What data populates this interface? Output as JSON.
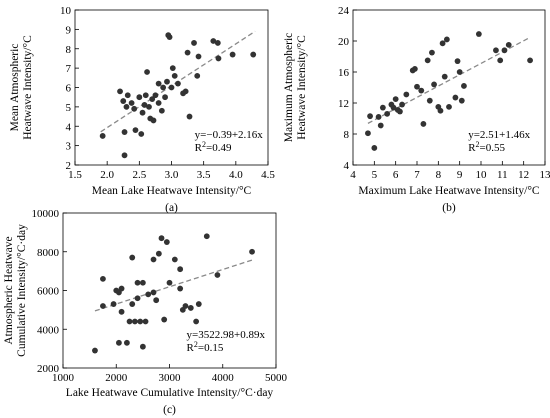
{
  "chart_data": [
    {
      "type": "scatter",
      "panel_label": "(a)",
      "xlabel": "Mean Lake Heatwave Intensity/°C",
      "ylabel": [
        "Mean Atmospheric",
        "Heatwave Intensity/°C"
      ],
      "xlim": [
        1.5,
        4.5
      ],
      "ylim": [
        2,
        10
      ],
      "xticks": [
        "1.5",
        "2.0",
        "2.5",
        "3.0",
        "3.5",
        "4.0",
        "4.5"
      ],
      "yticks": [
        "2",
        "3",
        "4",
        "5",
        "6",
        "7",
        "8",
        "9",
        "10"
      ],
      "xtick_values": [
        1.5,
        2.0,
        2.5,
        3.0,
        3.5,
        4.0,
        4.5
      ],
      "ytick_values": [
        2,
        3,
        4,
        5,
        6,
        7,
        8,
        9,
        10
      ],
      "equation": "y=−0.39+2.16x",
      "r2_label": "R",
      "r2_value": "=0.49",
      "trend": {
        "intercept": -0.39,
        "slope": 2.16,
        "x_range": [
          1.9,
          4.3
        ]
      },
      "points": [
        [
          1.93,
          3.5
        ],
        [
          2.2,
          5.8
        ],
        [
          2.25,
          5.3
        ],
        [
          2.27,
          2.5
        ],
        [
          2.27,
          3.7
        ],
        [
          2.3,
          5.0
        ],
        [
          2.32,
          5.6
        ],
        [
          2.38,
          5.2
        ],
        [
          2.42,
          4.9
        ],
        [
          2.44,
          3.8
        ],
        [
          2.5,
          5.5
        ],
        [
          2.53,
          3.6
        ],
        [
          2.55,
          4.7
        ],
        [
          2.58,
          5.1
        ],
        [
          2.6,
          5.6
        ],
        [
          2.62,
          6.8
        ],
        [
          2.65,
          5.0
        ],
        [
          2.67,
          4.4
        ],
        [
          2.7,
          5.4
        ],
        [
          2.72,
          4.3
        ],
        [
          2.75,
          5.6
        ],
        [
          2.8,
          5.2
        ],
        [
          2.85,
          4.8
        ],
        [
          2.87,
          6.0
        ],
        [
          2.9,
          5.5
        ],
        [
          2.93,
          6.3
        ],
        [
          2.95,
          8.7
        ],
        [
          2.97,
          8.6
        ],
        [
          3.0,
          6.0
        ],
        [
          3.02,
          7.0
        ],
        [
          3.05,
          6.6
        ],
        [
          3.1,
          6.2
        ],
        [
          3.18,
          5.7
        ],
        [
          3.25,
          7.8
        ],
        [
          3.28,
          4.5
        ],
        [
          3.35,
          8.3
        ],
        [
          3.4,
          6.6
        ],
        [
          3.42,
          7.6
        ],
        [
          3.65,
          8.4
        ],
        [
          3.72,
          8.3
        ],
        [
          3.73,
          7.5
        ],
        [
          3.95,
          7.7
        ],
        [
          4.27,
          7.7
        ],
        [
          3.22,
          5.8
        ],
        [
          2.8,
          6.2
        ]
      ]
    },
    {
      "type": "scatter",
      "panel_label": "(b)",
      "xlabel": "Maximum Lake Heatwave Intensity/°C",
      "ylabel": [
        "Maximum Atmospheric",
        "Heatwave Intensity/°C"
      ],
      "xlim": [
        4,
        13
      ],
      "ylim": [
        4,
        24
      ],
      "xticks": [
        "4",
        "5",
        "6",
        "7",
        "8",
        "9",
        "10",
        "11",
        "12",
        "13"
      ],
      "yticks": [
        "4",
        "8",
        "12",
        "16",
        "20",
        "24"
      ],
      "xtick_values": [
        4,
        5,
        6,
        7,
        8,
        9,
        10,
        11,
        12,
        13
      ],
      "ytick_values": [
        4,
        8,
        12,
        16,
        20,
        24
      ],
      "equation": "y=2.51+1.46x",
      "r2_label": "R",
      "r2_value": "=0.55",
      "trend": {
        "intercept": 2.51,
        "slope": 1.46,
        "x_range": [
          4.7,
          12.3
        ]
      },
      "points": [
        [
          4.7,
          8.1
        ],
        [
          4.8,
          10.3
        ],
        [
          5.0,
          6.2
        ],
        [
          5.2,
          10.2
        ],
        [
          5.3,
          9.1
        ],
        [
          5.4,
          11.4
        ],
        [
          5.6,
          10.6
        ],
        [
          5.8,
          11.8
        ],
        [
          6.0,
          12.5
        ],
        [
          6.1,
          11.1
        ],
        [
          6.2,
          10.9
        ],
        [
          6.3,
          11.8
        ],
        [
          6.5,
          13.1
        ],
        [
          6.8,
          16.2
        ],
        [
          7.0,
          14.1
        ],
        [
          7.2,
          13.6
        ],
        [
          7.3,
          9.3
        ],
        [
          7.5,
          17.5
        ],
        [
          7.6,
          12.3
        ],
        [
          7.7,
          18.5
        ],
        [
          7.8,
          14.4
        ],
        [
          8.0,
          11.5
        ],
        [
          8.1,
          11.0
        ],
        [
          8.2,
          19.7
        ],
        [
          8.3,
          15.4
        ],
        [
          8.4,
          20.2
        ],
        [
          8.5,
          11.5
        ],
        [
          8.8,
          12.7
        ],
        [
          8.9,
          17.4
        ],
        [
          9.0,
          16.0
        ],
        [
          9.1,
          12.3
        ],
        [
          9.2,
          14.2
        ],
        [
          9.9,
          20.9
        ],
        [
          10.7,
          18.8
        ],
        [
          10.9,
          17.5
        ],
        [
          11.1,
          18.8
        ],
        [
          11.3,
          19.5
        ],
        [
          12.3,
          17.5
        ],
        [
          6.9,
          16.4
        ],
        [
          5.9,
          11.4
        ]
      ]
    },
    {
      "type": "scatter",
      "panel_label": "(c)",
      "xlabel": "Lake Heatwave Cumulative Intensity/°C·day",
      "ylabel": [
        "Atmospheric Heatwave",
        "Cumulative Intensity/°C·day"
      ],
      "xlim": [
        1000,
        5000
      ],
      "ylim": [
        2000,
        10000
      ],
      "xticks": [
        "1000",
        "2000",
        "3000",
        "4000",
        "5000"
      ],
      "yticks": [
        "2000",
        "4000",
        "6000",
        "8000",
        "10000"
      ],
      "xtick_values": [
        1000,
        2000,
        3000,
        4000,
        5000
      ],
      "ytick_values": [
        2000,
        4000,
        6000,
        8000,
        10000
      ],
      "equation": "y=3522.98+0.89x",
      "r2_label": "R",
      "r2_value": "=0.15",
      "trend": {
        "intercept": 3522.98,
        "slope": 0.89,
        "x_range": [
          1600,
          4550
        ]
      },
      "points": [
        [
          1600,
          2900
        ],
        [
          1750,
          5200
        ],
        [
          1750,
          6600
        ],
        [
          1950,
          5300
        ],
        [
          2000,
          6000
        ],
        [
          2050,
          5900
        ],
        [
          2100,
          6100
        ],
        [
          2100,
          4900
        ],
        [
          2200,
          3300
        ],
        [
          2250,
          4400
        ],
        [
          2300,
          5300
        ],
        [
          2300,
          7700
        ],
        [
          2350,
          4400
        ],
        [
          2400,
          6400
        ],
        [
          2400,
          5600
        ],
        [
          2450,
          4400
        ],
        [
          2500,
          6400
        ],
        [
          2500,
          3100
        ],
        [
          2550,
          4400
        ],
        [
          2600,
          5800
        ],
        [
          2700,
          7600
        ],
        [
          2700,
          5900
        ],
        [
          2750,
          5500
        ],
        [
          2800,
          7900
        ],
        [
          2850,
          8700
        ],
        [
          2900,
          4500
        ],
        [
          2950,
          8500
        ],
        [
          3000,
          6400
        ],
        [
          3100,
          7600
        ],
        [
          3200,
          7100
        ],
        [
          3200,
          6100
        ],
        [
          3250,
          5000
        ],
        [
          3300,
          5200
        ],
        [
          3400,
          5100
        ],
        [
          3500,
          4400
        ],
        [
          3550,
          5300
        ],
        [
          3700,
          8800
        ],
        [
          3900,
          6800
        ],
        [
          4550,
          8000
        ],
        [
          2050,
          3300
        ]
      ]
    }
  ]
}
